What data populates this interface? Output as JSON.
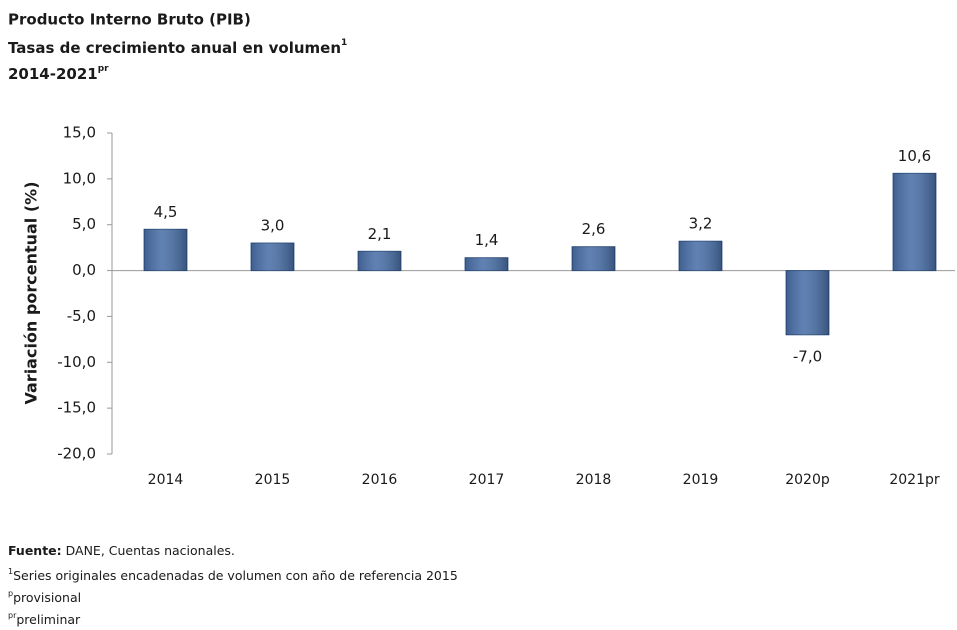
{
  "chart_data": {
    "type": "bar",
    "title": "Producto Interno Bruto (PIB)",
    "subtitle": [
      {
        "text": "Tasas de crecimiento anual en volumen",
        "sup": "1"
      },
      {
        "text": "2014-2021",
        "sup": "pr"
      }
    ],
    "y_label": "Variación porcentual (%)",
    "categories": [
      "2014",
      "2015",
      "2016",
      "2017",
      "2018",
      "2019",
      "2020p",
      "2021pr"
    ],
    "values": [
      4.5,
      3.0,
      2.1,
      1.4,
      2.6,
      3.2,
      -7.0,
      10.6
    ],
    "value_labels": [
      "4,5",
      "3,0",
      "2,1",
      "1,4",
      "2,6",
      "3,2",
      "-7,0",
      "10,6"
    ],
    "color": "#4a70a8",
    "ylim": [
      -20,
      15
    ],
    "yticks": [
      {
        "value": -20,
        "label": "-20,0"
      },
      {
        "value": -15,
        "label": "-15,0"
      },
      {
        "value": -10,
        "label": "-10,0"
      },
      {
        "value": -5,
        "label": "-5,0"
      },
      {
        "value": 0,
        "label": "0,0"
      },
      {
        "value": 5,
        "label": "5,0"
      },
      {
        "value": 10,
        "label": "10,0"
      },
      {
        "value": 15,
        "label": "15,0"
      }
    ],
    "grid": false,
    "notes": [
      {
        "bold": "Fuente:",
        "text": " DANE, Cuentas nacionales."
      },
      {
        "sup": "1",
        "text": "Series originales encadenadas de volumen con año de referencia 2015"
      },
      {
        "sup": "p",
        "text": "provisional"
      },
      {
        "sup": "pr",
        "text": "preliminar"
      }
    ]
  }
}
